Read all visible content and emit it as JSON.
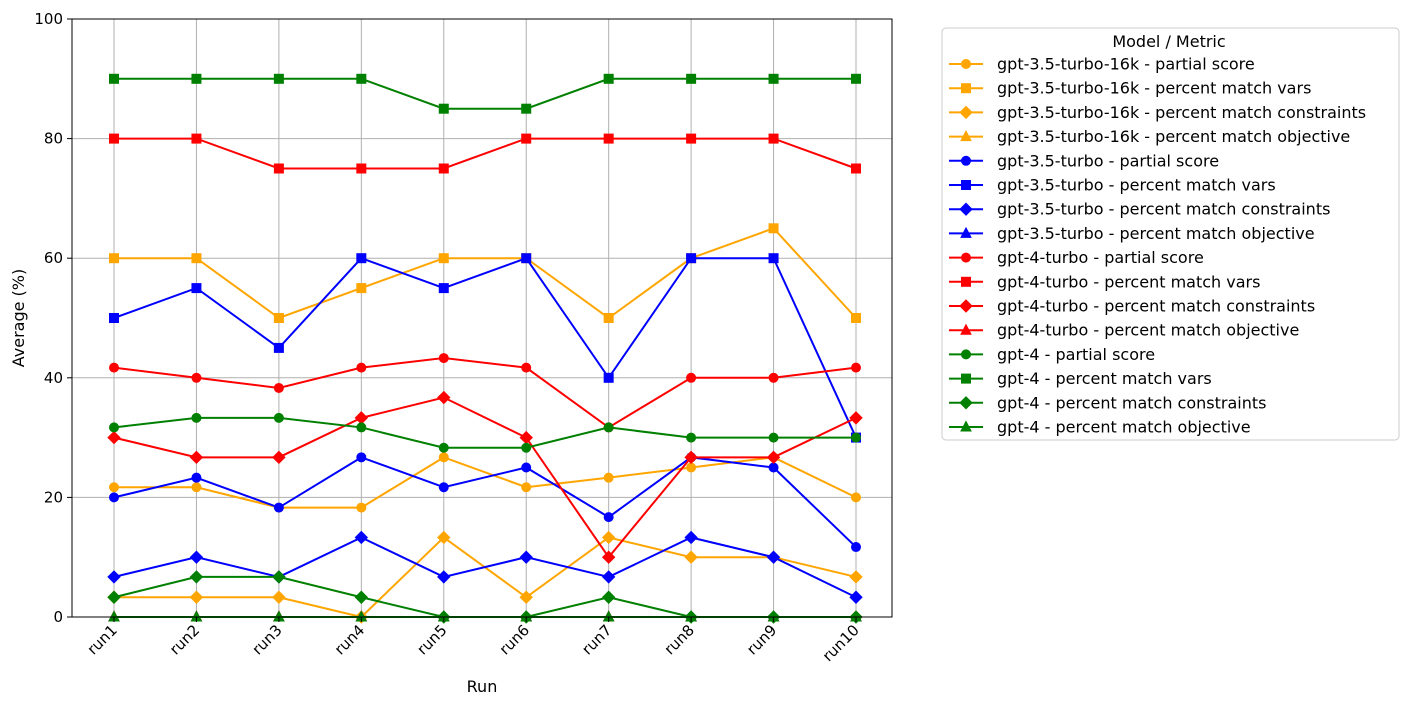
{
  "chart_data": {
    "type": "line",
    "xlabel": "Run",
    "ylabel": "Average (%)",
    "ylim": [
      0,
      100
    ],
    "yticks": [
      0,
      20,
      40,
      60,
      80,
      100
    ],
    "grid": true,
    "legend_title": "Model / Metric",
    "legend_position": "outside right",
    "categories": [
      "run1",
      "run2",
      "run3",
      "run4",
      "run5",
      "run6",
      "run7",
      "run8",
      "run9",
      "run10"
    ],
    "series": [
      {
        "name": "gpt-3.5-turbo-16k - partial score",
        "color": "#ffa500",
        "marker": "circle",
        "values": [
          21.7,
          21.7,
          18.3,
          18.3,
          26.7,
          21.7,
          23.3,
          25,
          26.7,
          20
        ]
      },
      {
        "name": "gpt-3.5-turbo-16k - percent match vars",
        "color": "#ffa500",
        "marker": "square",
        "values": [
          60,
          60,
          50,
          55,
          60,
          60,
          50,
          60,
          65,
          50
        ]
      },
      {
        "name": "gpt-3.5-turbo-16k - percent match constraints",
        "color": "#ffa500",
        "marker": "diamond",
        "values": [
          3.3,
          3.3,
          3.3,
          0,
          13.3,
          3.3,
          13.3,
          10,
          10,
          6.7
        ]
      },
      {
        "name": "gpt-3.5-turbo-16k - percent match objective",
        "color": "#ffa500",
        "marker": "triangle",
        "values": [
          0,
          0,
          0,
          0,
          0,
          0,
          0,
          0,
          0,
          0
        ]
      },
      {
        "name": "gpt-3.5-turbo - partial score",
        "color": "#0000ff",
        "marker": "circle",
        "values": [
          20,
          23.3,
          18.3,
          26.7,
          21.7,
          25,
          16.7,
          26.7,
          25,
          11.7
        ]
      },
      {
        "name": "gpt-3.5-turbo - percent match vars",
        "color": "#0000ff",
        "marker": "square",
        "values": [
          50,
          55,
          45,
          60,
          55,
          60,
          40,
          60,
          60,
          30
        ]
      },
      {
        "name": "gpt-3.5-turbo - percent match constraints",
        "color": "#0000ff",
        "marker": "diamond",
        "values": [
          6.7,
          10,
          6.7,
          13.3,
          6.7,
          10,
          6.7,
          13.3,
          10,
          3.3
        ]
      },
      {
        "name": "gpt-3.5-turbo - percent match objective",
        "color": "#0000ff",
        "marker": "triangle",
        "values": [
          0,
          0,
          0,
          0,
          0,
          0,
          0,
          0,
          0,
          0
        ]
      },
      {
        "name": "gpt-4-turbo - partial score",
        "color": "#ff0000",
        "marker": "circle",
        "values": [
          41.7,
          40,
          38.3,
          41.7,
          43.3,
          41.7,
          31.7,
          40,
          40,
          41.7
        ]
      },
      {
        "name": "gpt-4-turbo - percent match vars",
        "color": "#ff0000",
        "marker": "square",
        "values": [
          80,
          80,
          75,
          75,
          75,
          80,
          80,
          80,
          80,
          75
        ]
      },
      {
        "name": "gpt-4-turbo - percent match constraints",
        "color": "#ff0000",
        "marker": "diamond",
        "values": [
          30,
          26.7,
          26.7,
          33.3,
          36.7,
          30,
          10,
          26.7,
          26.7,
          33.3
        ]
      },
      {
        "name": "gpt-4-turbo - percent match objective",
        "color": "#ff0000",
        "marker": "triangle",
        "values": [
          0,
          0,
          0,
          0,
          0,
          0,
          0,
          0,
          0,
          0
        ]
      },
      {
        "name": "gpt-4 - partial score",
        "color": "#008000",
        "marker": "circle",
        "values": [
          31.7,
          33.3,
          33.3,
          31.7,
          28.3,
          28.3,
          31.7,
          30,
          30,
          30
        ]
      },
      {
        "name": "gpt-4 - percent match vars",
        "color": "#008000",
        "marker": "square",
        "values": [
          90,
          90,
          90,
          90,
          85,
          85,
          90,
          90,
          90,
          90
        ]
      },
      {
        "name": "gpt-4 - percent match constraints",
        "color": "#008000",
        "marker": "diamond",
        "values": [
          3.3,
          6.7,
          6.7,
          3.3,
          0,
          0,
          3.3,
          0,
          0,
          0
        ]
      },
      {
        "name": "gpt-4 - percent match objective",
        "color": "#008000",
        "marker": "triangle",
        "values": [
          0,
          0,
          0,
          0,
          0,
          0,
          0,
          0,
          0,
          0
        ]
      }
    ]
  }
}
